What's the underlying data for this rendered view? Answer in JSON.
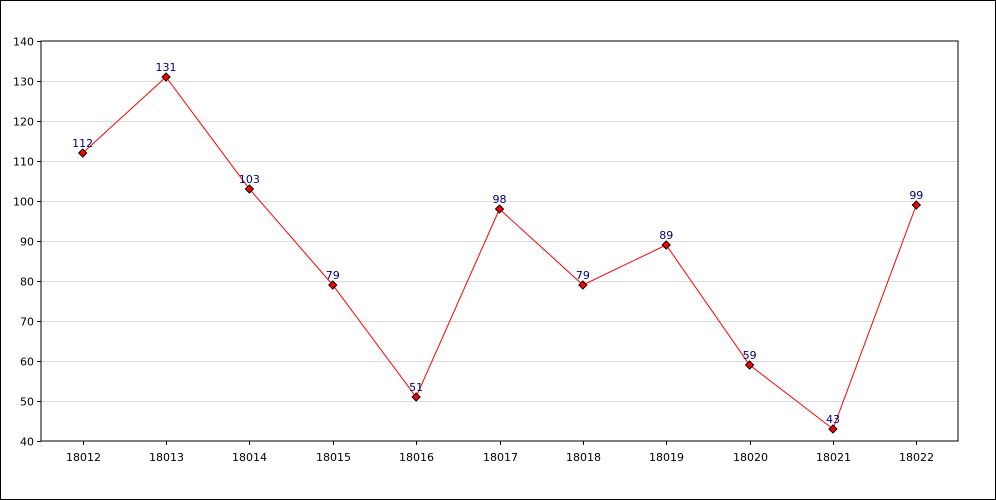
{
  "chart_data": {
    "type": "line",
    "categories": [
      "18012",
      "18013",
      "18014",
      "18015",
      "18016",
      "18017",
      "18018",
      "18019",
      "18020",
      "18021",
      "18022"
    ],
    "series": [
      {
        "values": [
          112,
          131,
          103,
          79,
          51,
          98,
          79,
          89,
          59,
          43,
          99
        ]
      }
    ],
    "title": "",
    "xlabel": "",
    "ylabel": "",
    "ylim": [
      40,
      140
    ],
    "yticks": [
      40,
      50,
      60,
      70,
      80,
      90,
      100,
      110,
      120,
      130,
      140
    ],
    "grid": true,
    "data_labels": true,
    "colors": {
      "line": "#ff0000",
      "marker_fill": "#ff0000",
      "marker_stroke": "#000000",
      "data_label": "#000080",
      "grid": "#dddddd",
      "axis": "#000000"
    }
  }
}
